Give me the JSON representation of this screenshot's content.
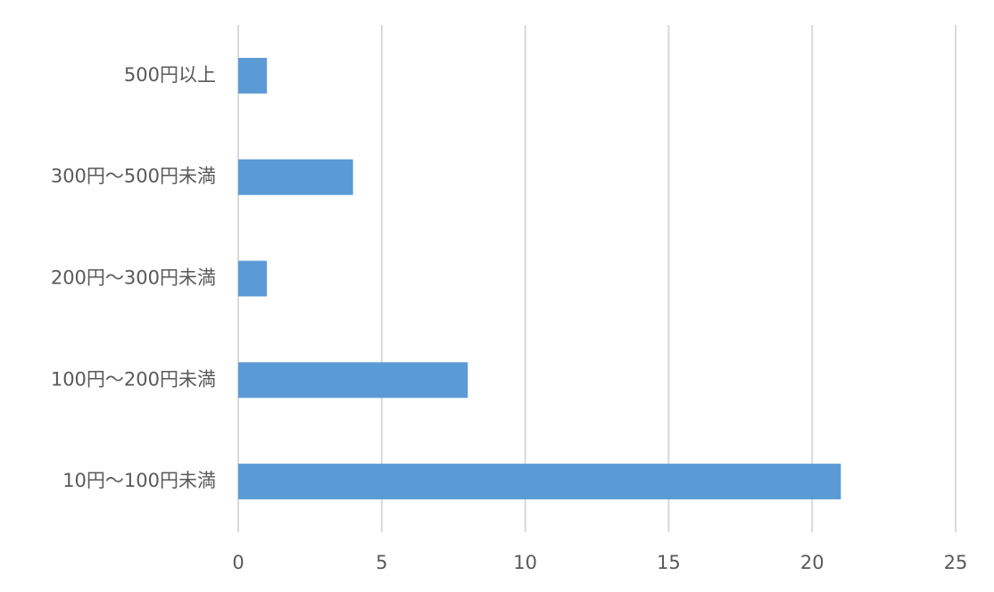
{
  "chart_data": {
    "type": "bar",
    "orientation": "horizontal",
    "categories": [
      "500円以上",
      "300円～500円未満",
      "200円～300円未満",
      "100円～200円未満",
      "10円～100円未満"
    ],
    "values": [
      1,
      4,
      1,
      8,
      21
    ],
    "color": "#5b9bd5",
    "xlim": [
      0,
      25
    ],
    "xticks": [
      0,
      5,
      10,
      15,
      20,
      25
    ],
    "grid": true
  }
}
